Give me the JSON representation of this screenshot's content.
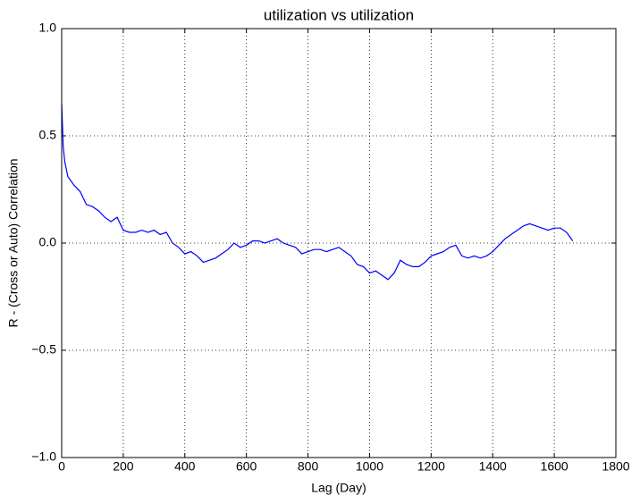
{
  "chart_data": {
    "type": "line",
    "title": "utilization vs utilization",
    "xlabel": "Lag (Day)",
    "ylabel": "R - (Cross or Auto) Correlation",
    "x": [
      0,
      5,
      10,
      20,
      40,
      60,
      80,
      100,
      120,
      140,
      160,
      180,
      200,
      220,
      240,
      260,
      280,
      300,
      320,
      340,
      360,
      380,
      400,
      420,
      440,
      460,
      480,
      500,
      520,
      540,
      560,
      580,
      600,
      620,
      640,
      660,
      680,
      700,
      720,
      740,
      760,
      780,
      800,
      820,
      840,
      860,
      880,
      900,
      920,
      940,
      960,
      980,
      1000,
      1020,
      1040,
      1060,
      1080,
      1100,
      1120,
      1140,
      1160,
      1180,
      1200,
      1220,
      1240,
      1260,
      1280,
      1300,
      1320,
      1340,
      1360,
      1380,
      1400,
      1420,
      1440,
      1460,
      1480,
      1500,
      1520,
      1540,
      1560,
      1580,
      1600,
      1620,
      1640,
      1660
    ],
    "series": [
      {
        "name": "utilization",
        "color": "#0000ff",
        "values": [
          0.65,
          0.45,
          0.38,
          0.31,
          0.27,
          0.24,
          0.18,
          0.17,
          0.15,
          0.12,
          0.1,
          0.12,
          0.06,
          0.05,
          0.05,
          0.06,
          0.05,
          0.06,
          0.04,
          0.05,
          0.0,
          -0.02,
          -0.05,
          -0.04,
          -0.06,
          -0.09,
          -0.08,
          -0.07,
          -0.05,
          -0.03,
          0.0,
          -0.02,
          -0.01,
          0.01,
          0.01,
          0.0,
          0.01,
          0.02,
          0.0,
          -0.01,
          -0.02,
          -0.05,
          -0.04,
          -0.03,
          -0.03,
          -0.04,
          -0.03,
          -0.02,
          -0.04,
          -0.06,
          -0.1,
          -0.11,
          -0.14,
          -0.13,
          -0.15,
          -0.17,
          -0.14,
          -0.08,
          -0.1,
          -0.11,
          -0.11,
          -0.09,
          -0.06,
          -0.05,
          -0.04,
          -0.02,
          -0.01,
          -0.06,
          -0.07,
          -0.06,
          -0.07,
          -0.06,
          -0.04,
          -0.01,
          0.02,
          0.04,
          0.06,
          0.08,
          0.09,
          0.08,
          0.07,
          0.06,
          0.07,
          0.07,
          0.05,
          0.01
        ]
      }
    ],
    "xlim": [
      0,
      1800
    ],
    "xticks": [
      0,
      200,
      400,
      600,
      800,
      1000,
      1200,
      1400,
      1600,
      1800
    ],
    "ylim": [
      -1.0,
      1.0
    ],
    "yticks": [
      {
        "value": -1.0,
        "label": "−1.0"
      },
      {
        "value": -0.5,
        "label": "−0.5"
      },
      {
        "value": 0.0,
        "label": "0.0"
      },
      {
        "value": 0.5,
        "label": "0.5"
      },
      {
        "value": 1.0,
        "label": "1.0"
      }
    ],
    "grid": true
  }
}
